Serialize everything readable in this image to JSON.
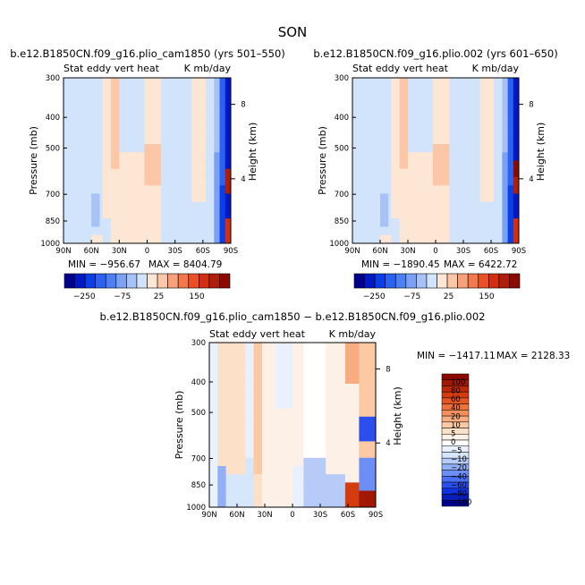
{
  "figure": {
    "season": "SON"
  },
  "chart_data": [
    {
      "type": "heatmap",
      "id": "top-left",
      "title": "b.e12.B1850CN.f09_g16.plio_cam1850 (yrs 501–550)",
      "left_label": "Stat eddy vert heat",
      "right_label": "K mb/day",
      "ylabel": "Pressure (mb)",
      "ylabel_right": "Height (km)",
      "x_ticks": [
        "90N",
        "60N",
        "30N",
        "0",
        "30S",
        "60S",
        "90S"
      ],
      "y_ticks": [
        "300",
        "400",
        "500",
        "700",
        "850",
        "1000"
      ],
      "height_ticks": [
        "8",
        "4"
      ],
      "xlim": [
        "90N",
        "90S"
      ],
      "ylim": [
        1000,
        300
      ],
      "log_pressure_axis": true,
      "min_label": "MIN = −956.67",
      "max_label": "MAX = 8404.79",
      "colorbar": {
        "orientation": "horizontal",
        "labels": [
          "−250",
          "−75",
          "25",
          "150"
        ]
      }
    },
    {
      "type": "heatmap",
      "id": "top-right",
      "title": "b.e12.B1850CN.f09_g16.plio.002 (yrs 601–650)",
      "left_label": "Stat eddy vert heat",
      "right_label": "K mb/day",
      "ylabel": "Pressure (mb)",
      "ylabel_right": "Height (km)",
      "x_ticks": [
        "90N",
        "60N",
        "30N",
        "0",
        "30S",
        "60S",
        "90S"
      ],
      "y_ticks": [
        "300",
        "400",
        "500",
        "700",
        "850",
        "1000"
      ],
      "height_ticks": [
        "8",
        "4"
      ],
      "xlim": [
        "90N",
        "90S"
      ],
      "ylim": [
        1000,
        300
      ],
      "log_pressure_axis": true,
      "min_label": "MIN = −1890.45",
      "max_label": "MAX = 6422.72",
      "colorbar": {
        "orientation": "horizontal",
        "labels": [
          "−250",
          "−75",
          "25",
          "150"
        ]
      }
    },
    {
      "type": "heatmap",
      "id": "bottom-diff",
      "title": "b.e12.B1850CN.f09_g16.plio_cam1850 − b.e12.B1850CN.f09_g16.plio.002",
      "left_label": "Stat eddy vert heat",
      "right_label": "K mb/day",
      "ylabel": "Pressure (mb)",
      "ylabel_right": "Height (km)",
      "x_ticks": [
        "90N",
        "60N",
        "30N",
        "0",
        "30S",
        "60S",
        "90S"
      ],
      "y_ticks": [
        "300",
        "400",
        "500",
        "700",
        "850",
        "1000"
      ],
      "height_ticks": [
        "8",
        "4"
      ],
      "xlim": [
        "90N",
        "90S"
      ],
      "ylim": [
        1000,
        300
      ],
      "log_pressure_axis": true,
      "min_label": "MIN = −1417.11",
      "max_label": "MAX = 2128.33",
      "colorbar": {
        "orientation": "vertical",
        "labels": [
          "100",
          "80",
          "60",
          "40",
          "20",
          "10",
          "5",
          "0",
          "−5",
          "−10",
          "−20",
          "−40",
          "−60",
          "−80",
          "−100"
        ]
      }
    }
  ],
  "palette": {
    "diverging_16": [
      "#00008f",
      "#0019c4",
      "#0a3ee6",
      "#2b62f2",
      "#4d80f5",
      "#7aa1f5",
      "#a7c2f7",
      "#d2e4fb",
      "#fde6d4",
      "#fbc7a6",
      "#f7a07a",
      "#f2784e",
      "#ea4f25",
      "#d42e10",
      "#b01d0a",
      "#8b0a00"
    ],
    "diverging_22": [
      "#00008f",
      "#0a1db8",
      "#1232dd",
      "#2b4fee",
      "#4a6ef2",
      "#6d8ef5",
      "#93aff7",
      "#b7cbf8",
      "#d6e6fb",
      "#e8f1fd",
      "#ffffff",
      "#fdf0e6",
      "#fde0c8",
      "#fbc9a4",
      "#f8ad80",
      "#f4905d",
      "#ef723c",
      "#e65622",
      "#d43c10",
      "#bd280a",
      "#a11804",
      "#8b0a00"
    ]
  }
}
